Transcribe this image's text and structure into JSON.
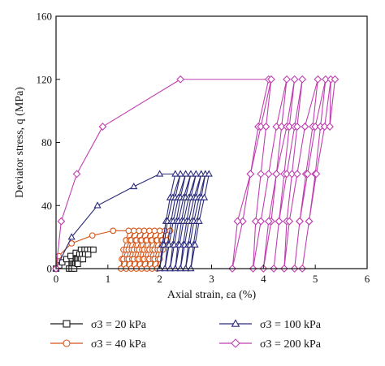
{
  "chart_data": {
    "type": "line",
    "xlabel": "Axial strain, εa (%)",
    "ylabel": "Deviator stress, q (MPa)",
    "xlim": [
      0,
      6
    ],
    "ylim": [
      0,
      160
    ],
    "xticks": [
      "0",
      "1",
      "2",
      "3",
      "4",
      "5",
      "6"
    ],
    "yticks": [
      "0",
      "40",
      "80",
      "120",
      "160"
    ],
    "grid": false,
    "legend_position": "bottom",
    "series": [
      {
        "name": "σ3 = 20 kPa",
        "color": "#1a1a1a",
        "marker": "square",
        "points": [
          [
            0.0,
            0
          ],
          [
            0.06,
            2
          ],
          [
            0.12,
            4
          ],
          [
            0.2,
            6
          ],
          [
            0.28,
            8
          ],
          [
            0.38,
            10
          ],
          [
            0.48,
            12
          ],
          [
            0.55,
            12
          ],
          [
            0.45,
            9
          ],
          [
            0.38,
            6
          ],
          [
            0.3,
            3
          ],
          [
            0.25,
            0
          ],
          [
            0.32,
            3
          ],
          [
            0.4,
            6
          ],
          [
            0.5,
            9
          ],
          [
            0.6,
            12
          ],
          [
            0.5,
            9
          ],
          [
            0.42,
            6
          ],
          [
            0.35,
            3
          ],
          [
            0.3,
            0
          ],
          [
            0.37,
            3
          ],
          [
            0.46,
            6
          ],
          [
            0.56,
            9
          ],
          [
            0.66,
            12
          ],
          [
            0.56,
            9
          ],
          [
            0.48,
            6
          ],
          [
            0.4,
            3
          ],
          [
            0.35,
            0
          ],
          [
            0.42,
            3
          ],
          [
            0.52,
            6
          ],
          [
            0.62,
            9
          ],
          [
            0.72,
            12
          ]
        ]
      },
      {
        "name": "σ3 = 40 kPa",
        "color": "#d4561a",
        "marker": "circle",
        "points": [
          [
            0.0,
            0
          ],
          [
            0.05,
            8
          ],
          [
            0.3,
            16
          ],
          [
            0.7,
            21
          ],
          [
            1.1,
            24
          ],
          [
            1.4,
            24
          ],
          [
            1.35,
            18
          ],
          [
            1.3,
            12
          ],
          [
            1.27,
            6
          ],
          [
            1.25,
            0
          ],
          [
            1.3,
            6
          ],
          [
            1.35,
            12
          ],
          [
            1.42,
            18
          ],
          [
            1.5,
            24
          ],
          [
            1.45,
            18
          ],
          [
            1.4,
            12
          ],
          [
            1.37,
            6
          ],
          [
            1.35,
            0
          ],
          [
            1.4,
            6
          ],
          [
            1.46,
            12
          ],
          [
            1.53,
            18
          ],
          [
            1.6,
            24
          ],
          [
            1.55,
            18
          ],
          [
            1.5,
            12
          ],
          [
            1.47,
            6
          ],
          [
            1.45,
            0
          ],
          [
            1.5,
            6
          ],
          [
            1.56,
            12
          ],
          [
            1.63,
            18
          ],
          [
            1.7,
            24
          ],
          [
            1.65,
            18
          ],
          [
            1.6,
            12
          ],
          [
            1.57,
            6
          ],
          [
            1.55,
            0
          ],
          [
            1.6,
            6
          ],
          [
            1.66,
            12
          ],
          [
            1.73,
            18
          ],
          [
            1.8,
            24
          ],
          [
            1.75,
            18
          ],
          [
            1.7,
            12
          ],
          [
            1.67,
            6
          ],
          [
            1.65,
            0
          ],
          [
            1.7,
            6
          ],
          [
            1.76,
            12
          ],
          [
            1.83,
            18
          ],
          [
            1.9,
            24
          ],
          [
            1.85,
            18
          ],
          [
            1.8,
            12
          ],
          [
            1.77,
            6
          ],
          [
            1.75,
            0
          ],
          [
            1.8,
            6
          ],
          [
            1.86,
            12
          ],
          [
            1.93,
            18
          ],
          [
            2.0,
            24
          ],
          [
            1.95,
            18
          ],
          [
            1.9,
            12
          ],
          [
            1.87,
            6
          ],
          [
            1.85,
            0
          ],
          [
            1.9,
            6
          ],
          [
            1.96,
            12
          ],
          [
            2.03,
            18
          ],
          [
            2.1,
            24
          ],
          [
            2.05,
            18
          ],
          [
            2.0,
            12
          ],
          [
            1.97,
            6
          ],
          [
            1.95,
            0
          ],
          [
            2.0,
            6
          ],
          [
            2.06,
            12
          ],
          [
            2.13,
            18
          ],
          [
            2.2,
            24
          ]
        ]
      },
      {
        "name": "σ3 = 100 kPa",
        "color": "#2a2a7a",
        "marker": "triangle",
        "points": [
          [
            0.0,
            0
          ],
          [
            0.3,
            20
          ],
          [
            0.8,
            40
          ],
          [
            1.5,
            52
          ],
          [
            2.0,
            60
          ],
          [
            2.3,
            60
          ],
          [
            2.2,
            45
          ],
          [
            2.12,
            30
          ],
          [
            2.05,
            15
          ],
          [
            2.0,
            0
          ],
          [
            2.08,
            15
          ],
          [
            2.15,
            30
          ],
          [
            2.25,
            45
          ],
          [
            2.4,
            60
          ],
          [
            2.3,
            45
          ],
          [
            2.22,
            30
          ],
          [
            2.15,
            15
          ],
          [
            2.1,
            0
          ],
          [
            2.18,
            15
          ],
          [
            2.26,
            30
          ],
          [
            2.36,
            45
          ],
          [
            2.5,
            60
          ],
          [
            2.4,
            45
          ],
          [
            2.32,
            30
          ],
          [
            2.25,
            15
          ],
          [
            2.2,
            0
          ],
          [
            2.28,
            15
          ],
          [
            2.36,
            30
          ],
          [
            2.46,
            45
          ],
          [
            2.6,
            60
          ],
          [
            2.5,
            45
          ],
          [
            2.42,
            30
          ],
          [
            2.35,
            15
          ],
          [
            2.3,
            0
          ],
          [
            2.38,
            15
          ],
          [
            2.46,
            30
          ],
          [
            2.56,
            45
          ],
          [
            2.7,
            60
          ],
          [
            2.6,
            45
          ],
          [
            2.52,
            30
          ],
          [
            2.45,
            15
          ],
          [
            2.4,
            0
          ],
          [
            2.48,
            15
          ],
          [
            2.56,
            30
          ],
          [
            2.66,
            45
          ],
          [
            2.8,
            60
          ],
          [
            2.7,
            45
          ],
          [
            2.62,
            30
          ],
          [
            2.55,
            15
          ],
          [
            2.5,
            0
          ],
          [
            2.58,
            15
          ],
          [
            2.66,
            30
          ],
          [
            2.76,
            45
          ],
          [
            2.88,
            60
          ],
          [
            2.8,
            45
          ],
          [
            2.72,
            30
          ],
          [
            2.65,
            15
          ],
          [
            2.6,
            0
          ],
          [
            2.68,
            15
          ],
          [
            2.76,
            30
          ],
          [
            2.86,
            45
          ],
          [
            2.95,
            60
          ]
        ]
      },
      {
        "name": "σ3 = 200 kPa",
        "color": "#c03fb0",
        "marker": "diamond",
        "points": [
          [
            0.0,
            0
          ],
          [
            0.1,
            30
          ],
          [
            0.4,
            60
          ],
          [
            0.9,
            90
          ],
          [
            2.4,
            120
          ],
          [
            4.1,
            120
          ],
          [
            3.9,
            90
          ],
          [
            3.75,
            60
          ],
          [
            3.6,
            30
          ],
          [
            3.4,
            0
          ],
          [
            3.5,
            30
          ],
          [
            3.75,
            60
          ],
          [
            3.95,
            90
          ],
          [
            4.15,
            120
          ],
          [
            4.05,
            90
          ],
          [
            3.95,
            60
          ],
          [
            3.85,
            30
          ],
          [
            3.8,
            0
          ],
          [
            3.95,
            30
          ],
          [
            4.1,
            60
          ],
          [
            4.25,
            90
          ],
          [
            4.45,
            120
          ],
          [
            4.35,
            90
          ],
          [
            4.25,
            60
          ],
          [
            4.15,
            30
          ],
          [
            4.0,
            0
          ],
          [
            4.1,
            30
          ],
          [
            4.25,
            60
          ],
          [
            4.45,
            90
          ],
          [
            4.6,
            120
          ],
          [
            4.5,
            90
          ],
          [
            4.4,
            60
          ],
          [
            4.3,
            30
          ],
          [
            4.2,
            0
          ],
          [
            4.3,
            30
          ],
          [
            4.45,
            60
          ],
          [
            4.6,
            90
          ],
          [
            4.75,
            120
          ],
          [
            4.65,
            90
          ],
          [
            4.55,
            60
          ],
          [
            4.45,
            30
          ],
          [
            4.4,
            0
          ],
          [
            4.5,
            30
          ],
          [
            4.65,
            60
          ],
          [
            4.8,
            90
          ],
          [
            5.05,
            120
          ],
          [
            4.95,
            90
          ],
          [
            4.82,
            60
          ],
          [
            4.7,
            30
          ],
          [
            4.6,
            0
          ],
          [
            4.7,
            30
          ],
          [
            4.85,
            60
          ],
          [
            5.0,
            90
          ],
          [
            5.2,
            120
          ],
          [
            5.1,
            90
          ],
          [
            5.0,
            60
          ],
          [
            4.88,
            30
          ],
          [
            4.75,
            0
          ],
          [
            4.88,
            30
          ],
          [
            5.02,
            60
          ],
          [
            5.18,
            90
          ],
          [
            5.3,
            120
          ],
          [
            5.28,
            90
          ],
          [
            5.38,
            120
          ]
        ]
      }
    ]
  }
}
